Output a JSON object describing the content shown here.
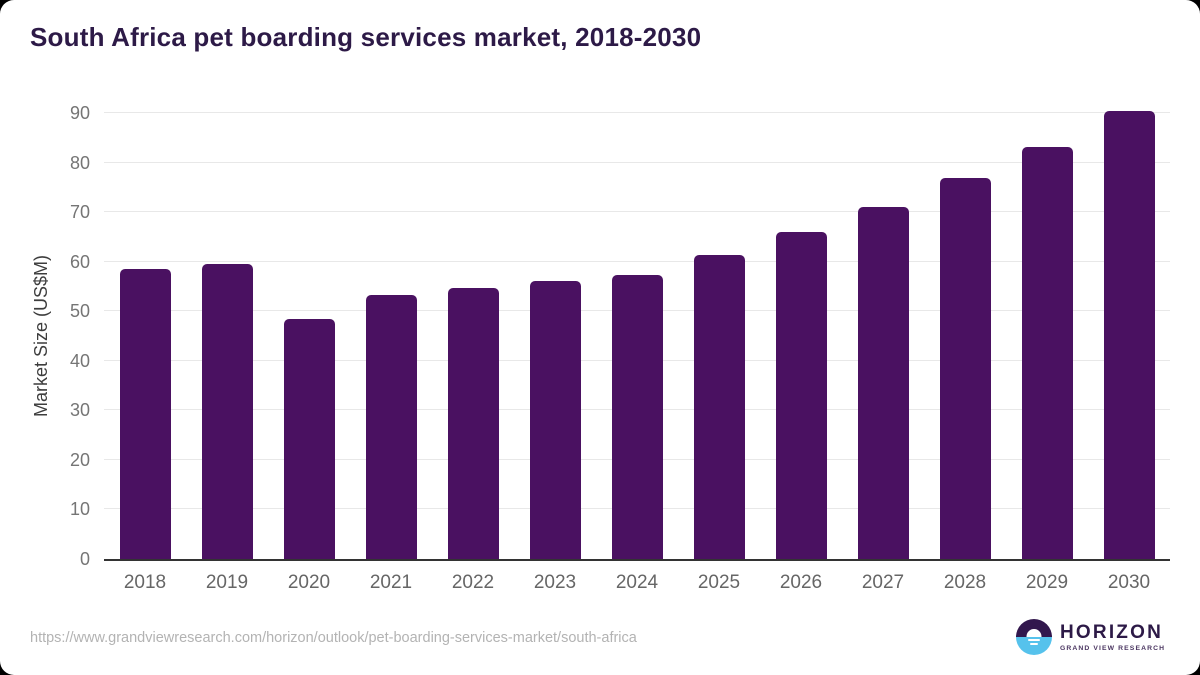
{
  "title": "South Africa pet boarding services market, 2018-2030",
  "chart_data": {
    "type": "bar",
    "title": "South Africa pet boarding services market, 2018-2030",
    "categories": [
      "2018",
      "2019",
      "2020",
      "2021",
      "2022",
      "2023",
      "2024",
      "2025",
      "2026",
      "2027",
      "2028",
      "2029",
      "2030"
    ],
    "values": [
      58.5,
      59.6,
      48.4,
      53.2,
      54.6,
      56.1,
      57.4,
      61.4,
      65.9,
      71.0,
      76.9,
      83.1,
      90.5
    ],
    "xlabel": "",
    "ylabel": "Market Size (US$M)",
    "ylim": [
      0,
      90
    ],
    "yticks": [
      0,
      10,
      20,
      30,
      40,
      50,
      60,
      70,
      80,
      90
    ],
    "grid": true,
    "legend": false,
    "bar_color": "#4a1161"
  },
  "colors": {
    "page_background": "#000000",
    "card_background": "#ffffff",
    "title_text": "#2d1a47",
    "bar": "#4a1161",
    "gridline": "#e8e8e8",
    "axis_line": "#333333",
    "y_tick_text": "#757575",
    "x_tick_text": "#666666",
    "y_axis_title_text": "#3d3d3d",
    "source_url_text": "#b3b3b3",
    "logo_purple": "#2d1a47",
    "logo_dark_half": "#32174d",
    "logo_blue": "#56c2ec",
    "logo_subtitle": "#4a3560"
  },
  "footer": {
    "source_url": "https://www.grandviewresearch.com/horizon/outlook/pet-boarding-services-market/south-africa",
    "logo_title": "HORIZON",
    "logo_subtitle": "GRAND VIEW RESEARCH"
  }
}
